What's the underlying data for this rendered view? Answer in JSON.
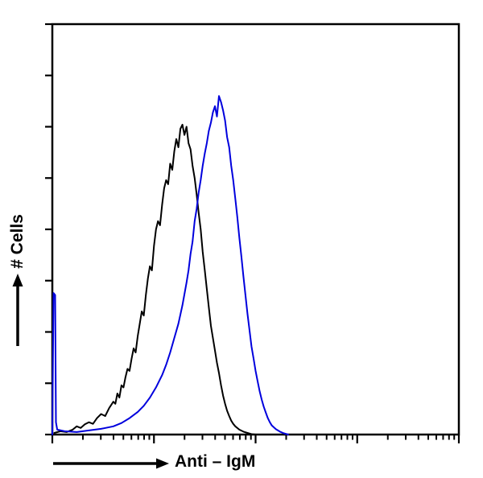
{
  "figure": {
    "background": "#ffffff",
    "axis_color": "#000000"
  },
  "chart_data": {
    "type": "line",
    "subtype": "flow-cytometry-histogram-overlay",
    "title": "",
    "xlabel": "Anti – IgM",
    "ylabel": "# Cells",
    "grid": false,
    "legend": null,
    "axes": {
      "x_scale": "log",
      "x_decades": 4,
      "x_tick_labels": [],
      "y_scale": "linear",
      "y_tick_count": 9,
      "y_tick_labels": [],
      "ylim_normalized": [
        0,
        1
      ]
    },
    "series": [
      {
        "name": "black",
        "color": "#000000",
        "stroke_width": 2,
        "peak_x_normalized": 0.32,
        "peak_height_normalized": 0.755,
        "points": [
          [
            0.005,
            0.004
          ],
          [
            0.02,
            0.008
          ],
          [
            0.035,
            0.006
          ],
          [
            0.05,
            0.012
          ],
          [
            0.06,
            0.02
          ],
          [
            0.07,
            0.016
          ],
          [
            0.08,
            0.025
          ],
          [
            0.09,
            0.03
          ],
          [
            0.1,
            0.026
          ],
          [
            0.11,
            0.04
          ],
          [
            0.12,
            0.05
          ],
          [
            0.13,
            0.045
          ],
          [
            0.14,
            0.065
          ],
          [
            0.15,
            0.08
          ],
          [
            0.155,
            0.075
          ],
          [
            0.16,
            0.1
          ],
          [
            0.165,
            0.09
          ],
          [
            0.17,
            0.12
          ],
          [
            0.175,
            0.115
          ],
          [
            0.18,
            0.14
          ],
          [
            0.185,
            0.16
          ],
          [
            0.19,
            0.155
          ],
          [
            0.195,
            0.185
          ],
          [
            0.2,
            0.21
          ],
          [
            0.205,
            0.2
          ],
          [
            0.21,
            0.24
          ],
          [
            0.215,
            0.27
          ],
          [
            0.22,
            0.3
          ],
          [
            0.225,
            0.29
          ],
          [
            0.23,
            0.34
          ],
          [
            0.235,
            0.38
          ],
          [
            0.24,
            0.41
          ],
          [
            0.245,
            0.4
          ],
          [
            0.25,
            0.46
          ],
          [
            0.255,
            0.5
          ],
          [
            0.26,
            0.52
          ],
          [
            0.265,
            0.51
          ],
          [
            0.27,
            0.56
          ],
          [
            0.275,
            0.6
          ],
          [
            0.28,
            0.62
          ],
          [
            0.285,
            0.61
          ],
          [
            0.29,
            0.66
          ],
          [
            0.295,
            0.645
          ],
          [
            0.3,
            0.69
          ],
          [
            0.305,
            0.72
          ],
          [
            0.31,
            0.7
          ],
          [
            0.315,
            0.745
          ],
          [
            0.32,
            0.755
          ],
          [
            0.325,
            0.73
          ],
          [
            0.33,
            0.75
          ],
          [
            0.335,
            0.71
          ],
          [
            0.34,
            0.695
          ],
          [
            0.345,
            0.655
          ],
          [
            0.35,
            0.625
          ],
          [
            0.355,
            0.585
          ],
          [
            0.36,
            0.54
          ],
          [
            0.365,
            0.5
          ],
          [
            0.37,
            0.445
          ],
          [
            0.375,
            0.4
          ],
          [
            0.38,
            0.355
          ],
          [
            0.385,
            0.31
          ],
          [
            0.39,
            0.265
          ],
          [
            0.395,
            0.235
          ],
          [
            0.4,
            0.205
          ],
          [
            0.405,
            0.175
          ],
          [
            0.41,
            0.15
          ],
          [
            0.415,
            0.12
          ],
          [
            0.42,
            0.095
          ],
          [
            0.425,
            0.075
          ],
          [
            0.43,
            0.058
          ],
          [
            0.435,
            0.045
          ],
          [
            0.44,
            0.034
          ],
          [
            0.445,
            0.026
          ],
          [
            0.45,
            0.02
          ],
          [
            0.46,
            0.012
          ],
          [
            0.47,
            0.007
          ],
          [
            0.48,
            0.004
          ],
          [
            0.49,
            0.001
          ],
          [
            0.5,
            0.0
          ]
        ]
      },
      {
        "name": "blue",
        "color": "#0000dd",
        "stroke_width": 2,
        "left_edge_spike_height_normalized": 0.345,
        "peak_x_normalized": 0.41,
        "peak_height_normalized": 0.825,
        "points": [
          [
            0.0,
            0.0
          ],
          [
            0.003,
            0.345
          ],
          [
            0.007,
            0.34
          ],
          [
            0.009,
            0.03
          ],
          [
            0.012,
            0.012
          ],
          [
            0.03,
            0.008
          ],
          [
            0.06,
            0.006
          ],
          [
            0.09,
            0.01
          ],
          [
            0.12,
            0.014
          ],
          [
            0.15,
            0.02
          ],
          [
            0.17,
            0.028
          ],
          [
            0.19,
            0.04
          ],
          [
            0.21,
            0.055
          ],
          [
            0.225,
            0.07
          ],
          [
            0.24,
            0.09
          ],
          [
            0.255,
            0.115
          ],
          [
            0.27,
            0.145
          ],
          [
            0.28,
            0.17
          ],
          [
            0.29,
            0.2
          ],
          [
            0.3,
            0.235
          ],
          [
            0.31,
            0.27
          ],
          [
            0.32,
            0.315
          ],
          [
            0.33,
            0.37
          ],
          [
            0.335,
            0.4
          ],
          [
            0.34,
            0.44
          ],
          [
            0.345,
            0.47
          ],
          [
            0.35,
            0.52
          ],
          [
            0.355,
            0.55
          ],
          [
            0.36,
            0.59
          ],
          [
            0.365,
            0.62
          ],
          [
            0.37,
            0.655
          ],
          [
            0.375,
            0.685
          ],
          [
            0.38,
            0.71
          ],
          [
            0.385,
            0.74
          ],
          [
            0.39,
            0.76
          ],
          [
            0.395,
            0.785
          ],
          [
            0.4,
            0.8
          ],
          [
            0.405,
            0.775
          ],
          [
            0.41,
            0.825
          ],
          [
            0.415,
            0.81
          ],
          [
            0.42,
            0.79
          ],
          [
            0.425,
            0.765
          ],
          [
            0.43,
            0.725
          ],
          [
            0.435,
            0.7
          ],
          [
            0.44,
            0.655
          ],
          [
            0.445,
            0.62
          ],
          [
            0.45,
            0.575
          ],
          [
            0.455,
            0.53
          ],
          [
            0.46,
            0.48
          ],
          [
            0.465,
            0.435
          ],
          [
            0.47,
            0.385
          ],
          [
            0.475,
            0.34
          ],
          [
            0.48,
            0.295
          ],
          [
            0.485,
            0.255
          ],
          [
            0.49,
            0.215
          ],
          [
            0.495,
            0.185
          ],
          [
            0.5,
            0.155
          ],
          [
            0.505,
            0.13
          ],
          [
            0.51,
            0.105
          ],
          [
            0.515,
            0.085
          ],
          [
            0.52,
            0.068
          ],
          [
            0.525,
            0.054
          ],
          [
            0.53,
            0.04
          ],
          [
            0.535,
            0.03
          ],
          [
            0.54,
            0.022
          ],
          [
            0.55,
            0.013
          ],
          [
            0.56,
            0.007
          ],
          [
            0.57,
            0.003
          ],
          [
            0.58,
            0.0
          ]
        ]
      }
    ]
  }
}
